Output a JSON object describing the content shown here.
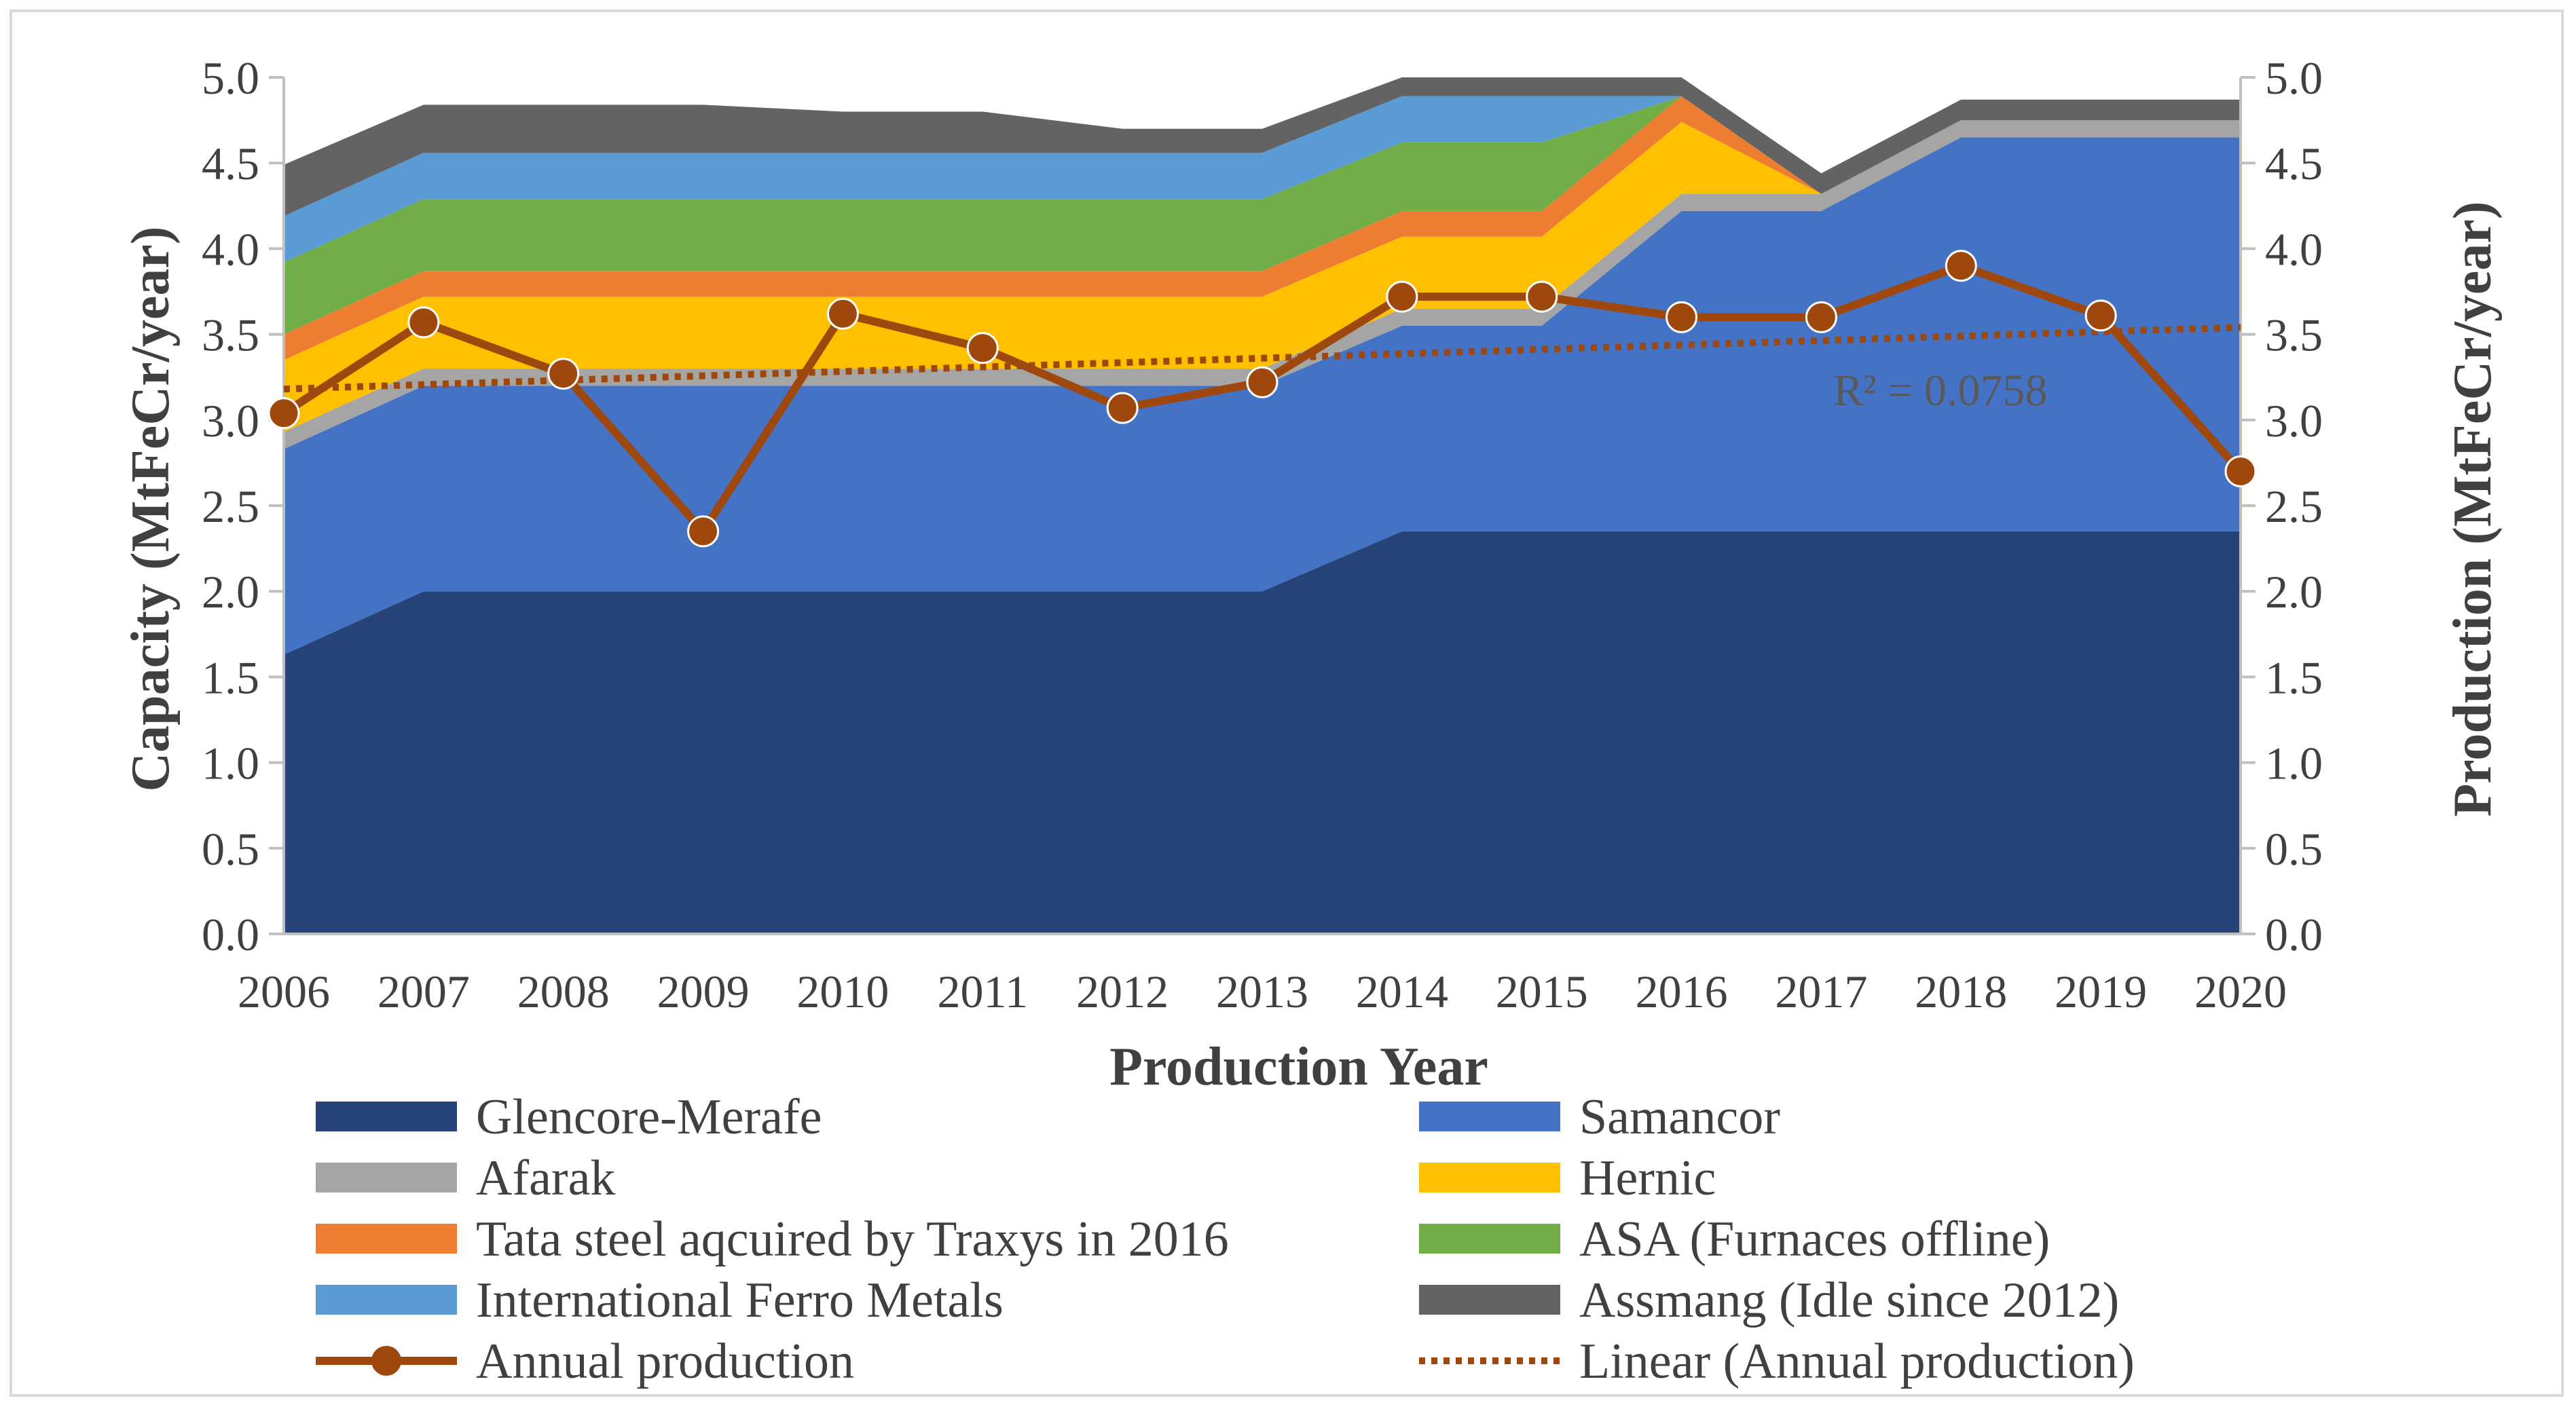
{
  "chart_data": {
    "type": "area",
    "years": [
      "2006",
      "2007",
      "2008",
      "2009",
      "2010",
      "2011",
      "2012",
      "2013",
      "2014",
      "2015",
      "2016",
      "2017",
      "2018",
      "2019",
      "2020"
    ],
    "xlabel": "Production Year",
    "ylabel_left": "Capacity (MtFeCr/year)",
    "ylabel_right": "Production (MtFeCr/year)",
    "ylim": [
      0,
      5.0
    ],
    "yticks": [
      "0.0",
      "0.5",
      "1.0",
      "1.5",
      "2.0",
      "2.5",
      "3.0",
      "3.5",
      "4.0",
      "4.5",
      "5.0"
    ],
    "stacked_series": [
      {
        "name": "Glencore-Merafe",
        "color": "#264478",
        "values": [
          1.63,
          2.0,
          2.0,
          2.0,
          2.0,
          2.0,
          2.0,
          2.0,
          2.35,
          2.35,
          2.35,
          2.35,
          2.35,
          2.35,
          2.35
        ]
      },
      {
        "name": "Samancor",
        "color": "#4472C4",
        "values": [
          1.2,
          1.2,
          1.2,
          1.2,
          1.2,
          1.2,
          1.2,
          1.2,
          1.2,
          1.2,
          1.87,
          1.87,
          2.3,
          2.3,
          2.3
        ]
      },
      {
        "name": "Afarak",
        "color": "#A5A5A5",
        "values": [
          0.1,
          0.1,
          0.1,
          0.1,
          0.1,
          0.1,
          0.1,
          0.1,
          0.1,
          0.1,
          0.1,
          0.1,
          0.1,
          0.1,
          0.1
        ]
      },
      {
        "name": "Hernic",
        "color": "#FFC000",
        "values": [
          0.42,
          0.42,
          0.42,
          0.42,
          0.42,
          0.42,
          0.42,
          0.42,
          0.42,
          0.42,
          0.42,
          0.0,
          0.0,
          0.0,
          0.0
        ]
      },
      {
        "name": "Tata steel aqcuired by Traxys in 2016",
        "color": "#ED7D31",
        "values": [
          0.15,
          0.15,
          0.15,
          0.15,
          0.15,
          0.15,
          0.15,
          0.15,
          0.15,
          0.15,
          0.15,
          0.0,
          0.0,
          0.0,
          0.0
        ]
      },
      {
        "name": "ASA (Furnaces offline)",
        "color": "#70AD47",
        "values": [
          0.42,
          0.42,
          0.42,
          0.42,
          0.42,
          0.42,
          0.42,
          0.42,
          0.4,
          0.4,
          0.0,
          0.0,
          0.0,
          0.0,
          0.0
        ]
      },
      {
        "name": "International Ferro Metals",
        "color": "#5B9BD5",
        "values": [
          0.27,
          0.27,
          0.27,
          0.27,
          0.27,
          0.27,
          0.27,
          0.27,
          0.27,
          0.27,
          0.0,
          0.0,
          0.0,
          0.0,
          0.0
        ]
      },
      {
        "name": "Assmang (Idle since 2012)",
        "color": "#636363",
        "values": [
          0.3,
          0.28,
          0.28,
          0.28,
          0.24,
          0.24,
          0.14,
          0.14,
          0.12,
          0.12,
          0.12,
          0.12,
          0.12,
          0.12,
          0.12
        ]
      }
    ],
    "line_series": {
      "name": "Annual production",
      "color": "#9E480E",
      "values": [
        3.04,
        3.57,
        3.27,
        2.35,
        3.62,
        3.42,
        3.07,
        3.22,
        3.72,
        3.72,
        3.6,
        3.6,
        3.9,
        3.61,
        2.7
      ]
    },
    "trendline": {
      "name": "Linear (Annual production)",
      "color": "#9E480E",
      "r2_label": "R² = 0.0758"
    }
  },
  "legend": [
    {
      "label": "Glencore-Merafe",
      "type": "area",
      "color": "#264478"
    },
    {
      "label": "Samancor",
      "type": "area",
      "color": "#4472C4"
    },
    {
      "label": "Afarak",
      "type": "area",
      "color": "#A5A5A5"
    },
    {
      "label": "Hernic",
      "type": "area",
      "color": "#FFC000"
    },
    {
      "label": "Tata steel aqcuired by Traxys in 2016",
      "type": "area",
      "color": "#ED7D31"
    },
    {
      "label": "ASA (Furnaces offline)",
      "type": "area",
      "color": "#70AD47"
    },
    {
      "label": "International Ferro Metals",
      "type": "area",
      "color": "#5B9BD5"
    },
    {
      "label": "Assmang (Idle since 2012)",
      "type": "area",
      "color": "#636363"
    },
    {
      "label": "Annual production",
      "type": "line-marker",
      "color": "#9E480E"
    },
    {
      "label": "Linear (Annual production)",
      "type": "dotted",
      "color": "#9E480E"
    }
  ]
}
